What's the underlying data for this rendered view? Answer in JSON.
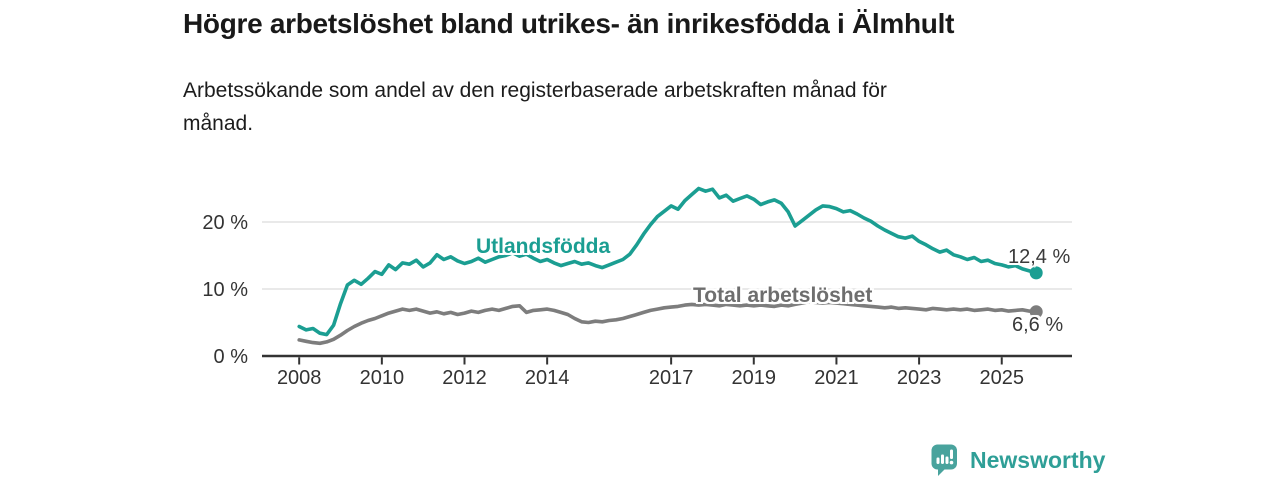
{
  "header": {
    "title": "Högre arbetslöshet bland utrikes- än inrikesfödda i Älmhult",
    "subtitle_lines": [
      "Arbetssökande som andel av den registerbaserade arbetskraften månad för",
      "månad."
    ]
  },
  "chart_data": {
    "type": "line",
    "title": "Högre arbetslöshet bland utrikes- än inrikesfödda i Älmhult",
    "subtitle": "Arbetssökande som andel av den registerbaserade arbetskraften månad för månad.",
    "unit": "%",
    "x_start_year": 2008,
    "x_step_years": 0.166667,
    "xlim": [
      2007.1,
      2026.7
    ],
    "ylim": [
      0,
      26
    ],
    "grid": true,
    "x_ticks": [
      {
        "year": 2008,
        "label": "2008"
      },
      {
        "year": 2010,
        "label": "2010"
      },
      {
        "year": 2012,
        "label": "2012"
      },
      {
        "year": 2014,
        "label": "2014"
      },
      {
        "year": 2017,
        "label": "2017"
      },
      {
        "year": 2019,
        "label": "2019"
      },
      {
        "year": 2021,
        "label": "2021"
      },
      {
        "year": 2023,
        "label": "2023"
      },
      {
        "year": 2025,
        "label": "2025"
      }
    ],
    "y_ticks": [
      {
        "value": 0,
        "label": "0 %"
      },
      {
        "value": 10,
        "label": "10 %"
      },
      {
        "value": 20,
        "label": "20 %"
      }
    ],
    "series": [
      {
        "name": "Utlandsfödda",
        "color": "#1b9e92",
        "label_color": "#1b9e92",
        "end_label": "12,4 %",
        "end_value": 12.4,
        "values": [
          4.4,
          3.9,
          4.1,
          3.4,
          3.2,
          4.6,
          7.8,
          10.6,
          11.3,
          10.7,
          11.6,
          12.6,
          12.2,
          13.6,
          12.9,
          13.9,
          13.7,
          14.3,
          13.3,
          13.9,
          15.1,
          14.4,
          14.8,
          14.2,
          13.8,
          14.1,
          14.6,
          14.0,
          14.4,
          14.8,
          15.0,
          15.4,
          14.9,
          15.2,
          14.6,
          14.1,
          14.4,
          13.9,
          13.5,
          13.8,
          14.1,
          13.7,
          13.9,
          13.5,
          13.2,
          13.6,
          14.0,
          14.4,
          15.2,
          16.6,
          18.2,
          19.6,
          20.8,
          21.6,
          22.4,
          21.9,
          23.2,
          24.1,
          25.0,
          24.6,
          24.9,
          23.6,
          24.0,
          23.1,
          23.5,
          23.9,
          23.4,
          22.6,
          23.0,
          23.3,
          22.8,
          21.5,
          19.4,
          20.2,
          21.0,
          21.8,
          22.4,
          22.3,
          22.0,
          21.5,
          21.7,
          21.2,
          20.6,
          20.1,
          19.4,
          18.8,
          18.3,
          17.8,
          17.6,
          17.9,
          17.1,
          16.6,
          16.0,
          15.5,
          15.8,
          15.1,
          14.8,
          14.4,
          14.7,
          14.1,
          14.3,
          13.8,
          13.6,
          13.3,
          13.5,
          13.0,
          12.7,
          12.4
        ]
      },
      {
        "name": "Total arbetslöshet",
        "color": "#7d7d7d",
        "label_color": "#6e6e6e",
        "end_label": "6,6 %",
        "end_value": 6.6,
        "values": [
          2.4,
          2.2,
          2.0,
          1.9,
          2.1,
          2.5,
          3.1,
          3.8,
          4.4,
          4.9,
          5.3,
          5.6,
          6.0,
          6.4,
          6.7,
          7.0,
          6.8,
          7.0,
          6.7,
          6.4,
          6.6,
          6.3,
          6.5,
          6.2,
          6.4,
          6.7,
          6.5,
          6.8,
          7.0,
          6.8,
          7.1,
          7.4,
          7.5,
          6.5,
          6.8,
          6.9,
          7.0,
          6.8,
          6.5,
          6.2,
          5.6,
          5.1,
          5.0,
          5.2,
          5.1,
          5.3,
          5.4,
          5.6,
          5.9,
          6.2,
          6.5,
          6.8,
          7.0,
          7.2,
          7.3,
          7.4,
          7.6,
          7.7,
          7.6,
          7.7,
          7.6,
          7.5,
          7.7,
          7.6,
          7.5,
          7.6,
          7.5,
          7.6,
          7.5,
          7.4,
          7.6,
          7.5,
          7.7,
          7.9,
          8.1,
          8.0,
          7.9,
          8.0,
          7.9,
          7.8,
          7.7,
          7.6,
          7.5,
          7.4,
          7.3,
          7.2,
          7.3,
          7.1,
          7.2,
          7.1,
          7.0,
          6.9,
          7.1,
          7.0,
          6.9,
          7.0,
          6.9,
          7.0,
          6.8,
          6.9,
          7.0,
          6.8,
          6.9,
          6.7,
          6.8,
          6.9,
          6.7,
          6.6
        ]
      }
    ],
    "legend_position": "inline-labels",
    "axis_color": "#333333",
    "gridline_color": "#dcdcdc"
  },
  "footer": {
    "brand": "Newsworthy",
    "brand_color": "#2f9f97",
    "logo_color": "#49a39d",
    "logo_icon": "bar-chart-speech-bubble"
  }
}
